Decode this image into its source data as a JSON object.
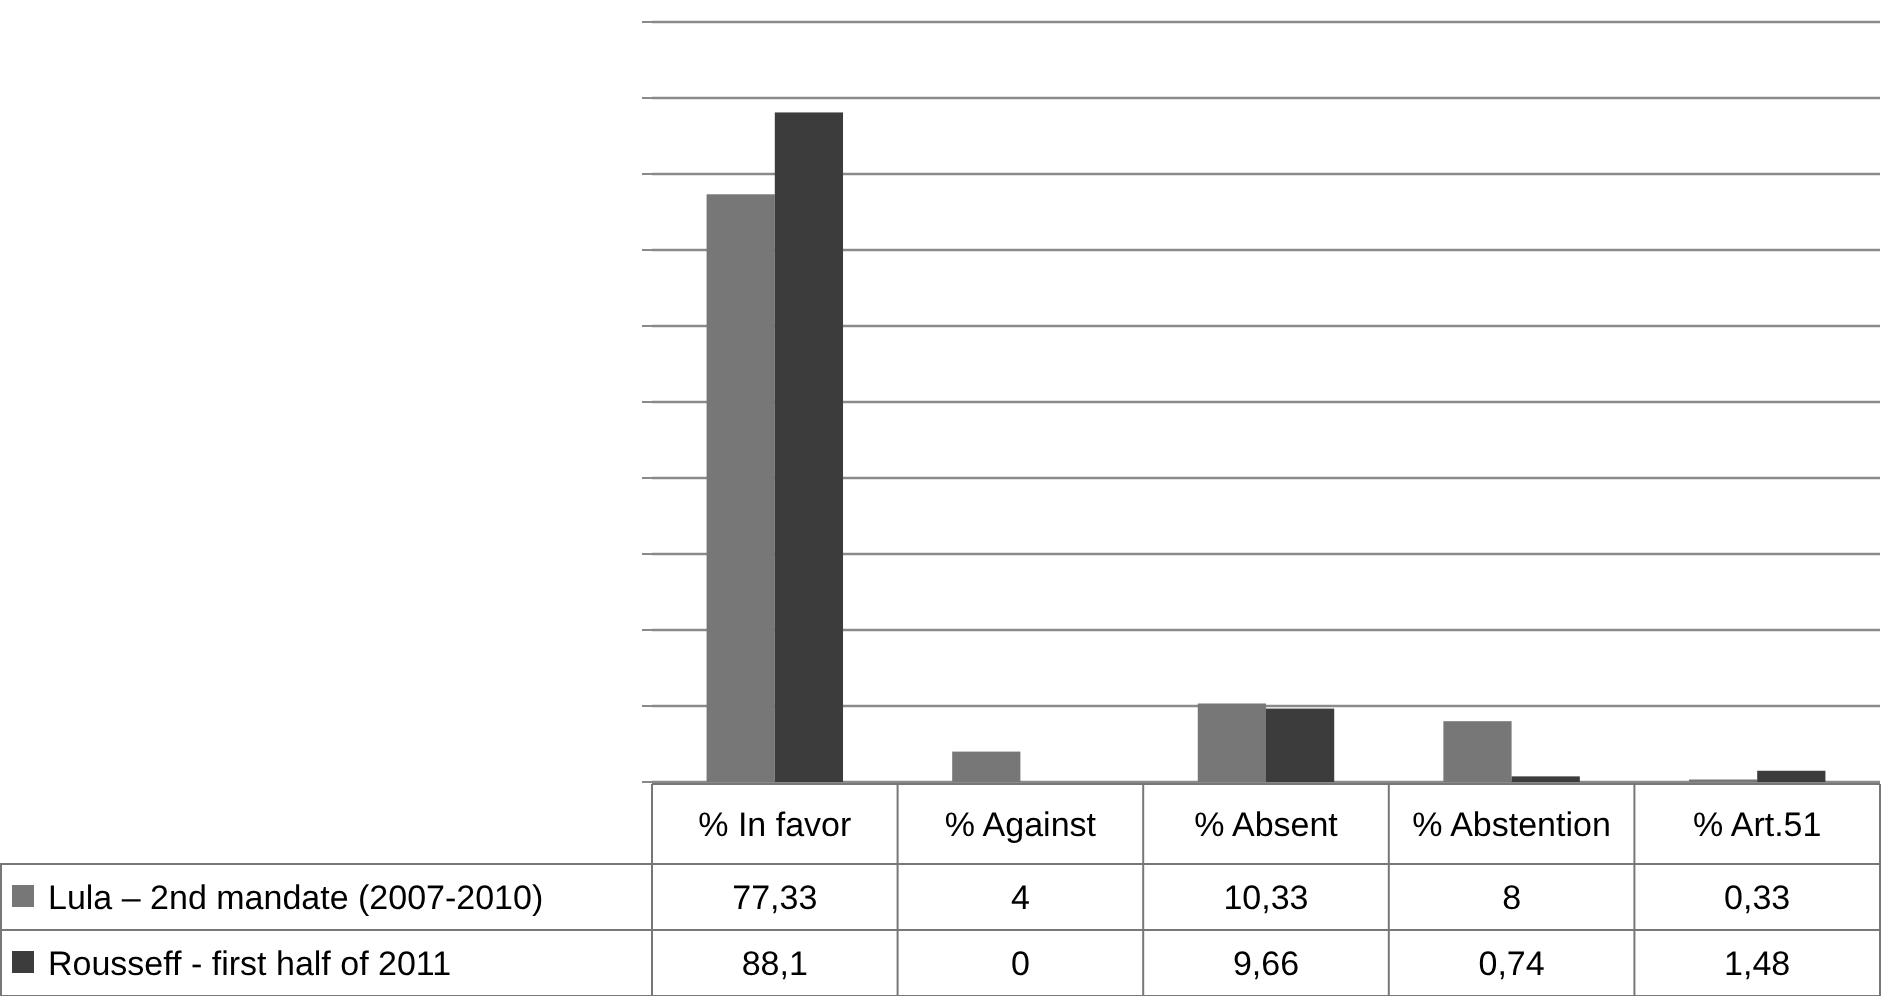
{
  "chart_data": {
    "type": "bar",
    "categories": [
      "% In favor",
      "% Against",
      "% Absent",
      "% Abstention",
      "% Art.51"
    ],
    "series": [
      {
        "name": "Lula – 2nd mandate (2007-2010)",
        "color": "#777777",
        "values": [
          77.33,
          4,
          10.33,
          8,
          0.33
        ],
        "value_labels": [
          "77,33",
          "4",
          "10,33",
          "8",
          "0,33"
        ]
      },
      {
        "name": "Rousseff - first half of 2011",
        "color": "#3c3c3c",
        "values": [
          88.1,
          0,
          9.66,
          0.74,
          1.48
        ],
        "value_labels": [
          "88,1",
          "0",
          "9,66",
          "0,74",
          "1,48"
        ]
      }
    ],
    "ylim": [
      0,
      100
    ],
    "yticks": [
      {
        "value": 0,
        "label": null
      },
      {
        "value": 10,
        "label": null
      },
      {
        "value": 20,
        "label": null
      },
      {
        "value": 30,
        "label": null
      },
      {
        "value": 40,
        "label": null
      },
      {
        "value": 50,
        "label": null
      },
      {
        "value": 60,
        "label": null
      },
      {
        "value": 70,
        "label": null
      },
      {
        "value": 80,
        "label": null
      },
      {
        "value": 90,
        "label": null
      },
      {
        "value": 100,
        "label": null
      }
    ],
    "grid": "y",
    "legend": "bottom left"
  }
}
